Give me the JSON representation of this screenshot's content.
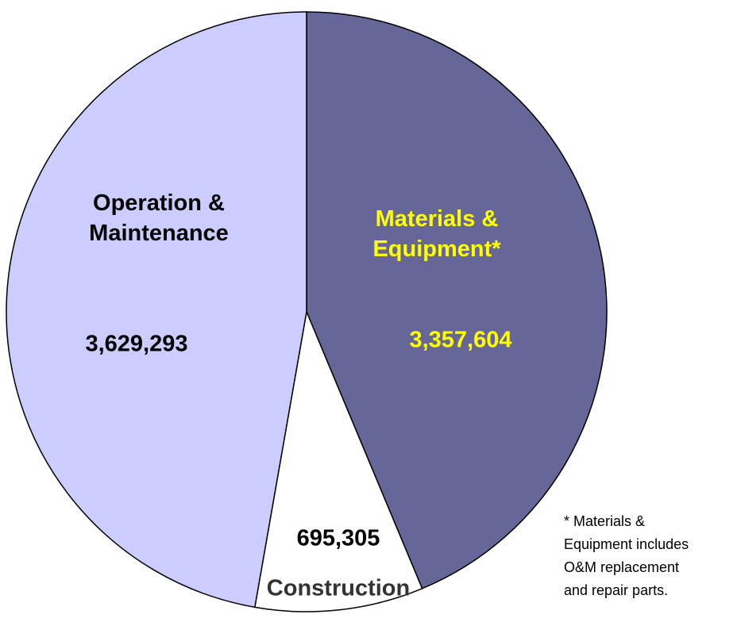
{
  "chart_data": {
    "type": "pie",
    "categories": [
      "Materials & Equipment*",
      "Construction",
      "Operation & Maintenance"
    ],
    "values": [
      3357604,
      695305,
      3629293
    ],
    "value_labels": [
      "3,357,604",
      "695,305",
      "3,629,293"
    ],
    "colors": [
      "#666699",
      "#ffffff",
      "#ccccff"
    ],
    "label_colors": [
      "#ffff00",
      "#333333",
      "#000000"
    ],
    "footnote": [
      "* Materials &",
      "Equipment includes",
      "O&M replacement",
      "and repair parts."
    ]
  }
}
